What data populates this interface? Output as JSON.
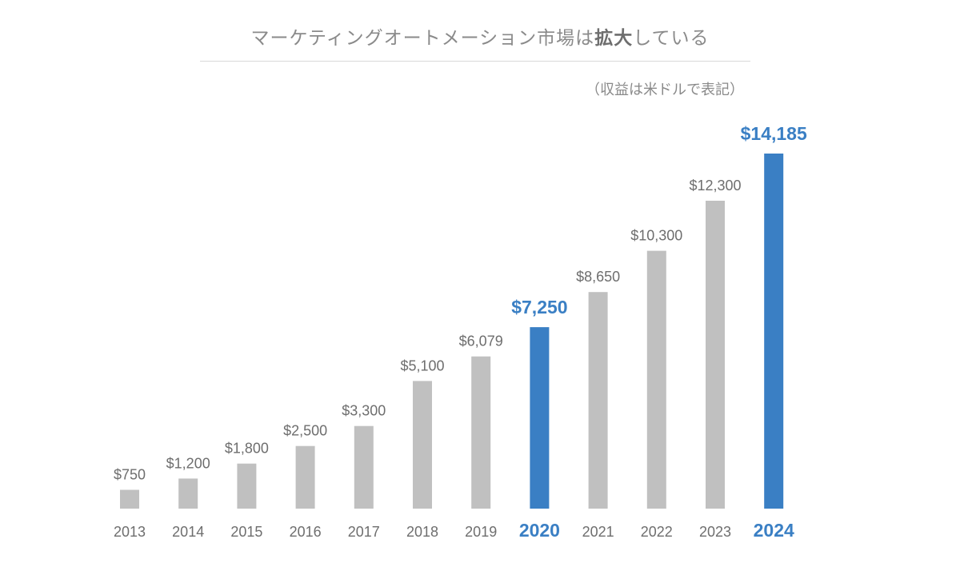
{
  "title": {
    "prefix": "マーケティングオートメーション市場は",
    "emphasis": "拡大",
    "suffix": "している"
  },
  "subtitle": "（収益は米ドルで表記）",
  "colors": {
    "default_bar": "#c0c0c0",
    "highlight_bar": "#3a7fc4",
    "default_text": "#6e6e6e",
    "highlight_text": "#3a7fc4",
    "title_text": "#8a8a8a"
  },
  "chart_data": {
    "type": "bar",
    "categories": [
      "2013",
      "2014",
      "2015",
      "2016",
      "2017",
      "2018",
      "2019",
      "2020",
      "2021",
      "2022",
      "2023",
      "2024"
    ],
    "values": [
      750,
      1200,
      1800,
      2500,
      3300,
      5100,
      6079,
      7250,
      8650,
      10300,
      12300,
      14185
    ],
    "value_labels": [
      "$750",
      "$1,200",
      "$1,800",
      "$2,500",
      "$3,300",
      "$5,100",
      "$6,079",
      "$7,250",
      "$8,650",
      "$10,300",
      "$12,300",
      "$14,185"
    ],
    "highlighted": [
      "2020",
      "2024"
    ],
    "ylim": [
      0,
      14185
    ],
    "grid": false,
    "legend": "none"
  }
}
